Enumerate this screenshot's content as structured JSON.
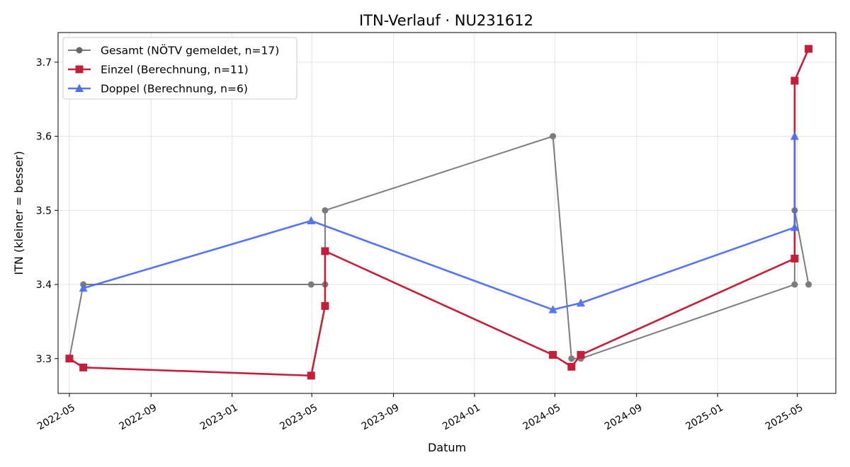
{
  "chart_data": {
    "type": "line",
    "title": "ITN-Verlauf · NU231612",
    "xlabel": "Datum",
    "ylabel": "ITN  (kleiner = besser)",
    "x_ticks": [
      "2022-05",
      "2022-09",
      "2023-01",
      "2023-05",
      "2023-09",
      "2024-01",
      "2024-05",
      "2024-09",
      "2025-01",
      "2025-05"
    ],
    "y_ticks": [
      3.3,
      3.4,
      3.5,
      3.6,
      3.7
    ],
    "xlim": [
      "2022-04-14",
      "2025-06-28"
    ],
    "ylim": [
      3.253,
      3.74
    ],
    "grid": true,
    "legend_position": "top-left",
    "series": [
      {
        "name": "Gesamt (NÖTV gemeldet, n=17)",
        "color": "#666666",
        "marker": "circle",
        "points": [
          {
            "x": "2022-05-01",
            "y": 3.3
          },
          {
            "x": "2022-05-22",
            "y": 3.4
          },
          {
            "x": "2023-04-30",
            "y": 3.4
          },
          {
            "x": "2023-05-21",
            "y": 3.4
          },
          {
            "x": "2023-05-21",
            "y": 3.5
          },
          {
            "x": "2024-04-28",
            "y": 3.6
          },
          {
            "x": "2024-05-26",
            "y": 3.3
          },
          {
            "x": "2024-06-09",
            "y": 3.3
          },
          {
            "x": "2025-04-27",
            "y": 3.4
          },
          {
            "x": "2025-04-27",
            "y": 3.5
          },
          {
            "x": "2025-05-18",
            "y": 3.4
          }
        ]
      },
      {
        "name": "Einzel (Berechnung, n=11)",
        "color": "#c41e3a",
        "marker": "square",
        "points": [
          {
            "x": "2022-05-01",
            "y": 3.3
          },
          {
            "x": "2022-05-22",
            "y": 3.288
          },
          {
            "x": "2023-04-30",
            "y": 3.277
          },
          {
            "x": "2023-05-21",
            "y": 3.371
          },
          {
            "x": "2023-05-21",
            "y": 3.445
          },
          {
            "x": "2024-04-28",
            "y": 3.305
          },
          {
            "x": "2024-05-26",
            "y": 3.289
          },
          {
            "x": "2024-06-09",
            "y": 3.305
          },
          {
            "x": "2025-04-27",
            "y": 3.435
          },
          {
            "x": "2025-04-27",
            "y": 3.675
          },
          {
            "x": "2025-05-18",
            "y": 3.718
          }
        ]
      },
      {
        "name": "Doppel (Berechnung, n=6)",
        "color": "#4f6ef0",
        "marker": "triangle",
        "points": [
          {
            "x": "2022-05-22",
            "y": 3.395
          },
          {
            "x": "2023-04-30",
            "y": 3.486
          },
          {
            "x": "2024-04-28",
            "y": 3.366
          },
          {
            "x": "2024-06-09",
            "y": 3.375
          },
          {
            "x": "2025-04-27",
            "y": 3.477
          },
          {
            "x": "2025-04-27",
            "y": 3.6
          }
        ]
      }
    ]
  }
}
